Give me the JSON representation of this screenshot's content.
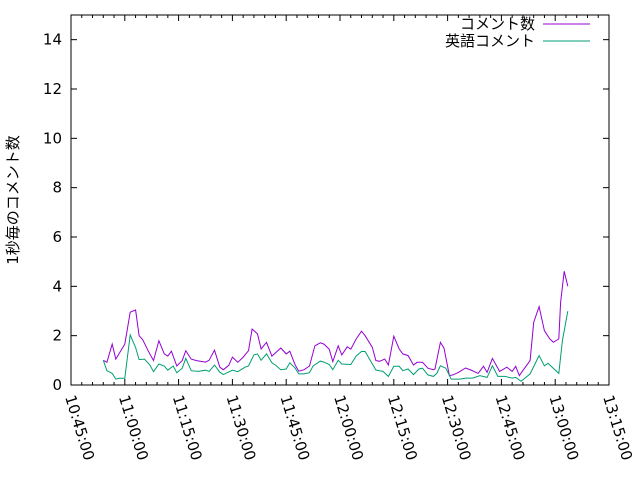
{
  "chart_data": {
    "type": "line",
    "title": "",
    "xlabel": "",
    "ylabel": "1秒毎のコメント数",
    "xlim": [
      "10:45:00",
      "13:15:00"
    ],
    "ylim": [
      0,
      15
    ],
    "x_ticks": [
      "10:45:00",
      "11:00:00",
      "11:15:00",
      "11:30:00",
      "11:45:00",
      "12:00:00",
      "12:15:00",
      "12:30:00",
      "12:45:00",
      "13:00:00",
      "13:15:00"
    ],
    "y_ticks": [
      0,
      2,
      4,
      6,
      8,
      10,
      12,
      14
    ],
    "grid": false,
    "legend": "top-right",
    "series": [
      {
        "name": "コメント数",
        "color": "#9400d3",
        "points": [
          [
            "10:54:00",
            1.0
          ],
          [
            "10:55:00",
            0.92
          ],
          [
            "10:56:30",
            1.66
          ],
          [
            "10:57:30",
            1.05
          ],
          [
            "11:00:00",
            1.66
          ],
          [
            "11:01:30",
            2.95
          ],
          [
            "11:03:00",
            3.04
          ],
          [
            "11:04:00",
            2.0
          ],
          [
            "11:05:00",
            1.84
          ],
          [
            "11:06:30",
            1.39
          ],
          [
            "11:08:00",
            0.99
          ],
          [
            "11:09:30",
            1.79
          ],
          [
            "11:11:00",
            1.26
          ],
          [
            "11:12:00",
            1.17
          ],
          [
            "11:13:00",
            1.37
          ],
          [
            "11:14:30",
            0.77
          ],
          [
            "11:16:00",
            0.99
          ],
          [
            "11:17:00",
            1.39
          ],
          [
            "11:18:30",
            1.05
          ],
          [
            "11:20:00",
            0.99
          ],
          [
            "11:22:30",
            0.93
          ],
          [
            "11:23:30",
            1.0
          ],
          [
            "11:25:00",
            1.41
          ],
          [
            "11:26:30",
            0.72
          ],
          [
            "11:27:30",
            0.62
          ],
          [
            "11:29:00",
            0.8
          ],
          [
            "11:30:00",
            1.13
          ],
          [
            "11:31:30",
            0.92
          ],
          [
            "11:33:00",
            1.13
          ],
          [
            "11:34:30",
            1.39
          ],
          [
            "11:35:30",
            2.27
          ],
          [
            "11:37:00",
            2.07
          ],
          [
            "11:38:00",
            1.46
          ],
          [
            "11:39:30",
            1.73
          ],
          [
            "11:41:00",
            1.17
          ],
          [
            "11:43:30",
            1.5
          ],
          [
            "11:45:00",
            1.26
          ],
          [
            "11:46:00",
            1.37
          ],
          [
            "11:47:30",
            0.81
          ],
          [
            "11:48:30",
            0.56
          ],
          [
            "11:50:00",
            0.62
          ],
          [
            "11:51:30",
            0.77
          ],
          [
            "11:53:00",
            1.59
          ],
          [
            "11:54:30",
            1.71
          ],
          [
            "11:55:30",
            1.66
          ],
          [
            "11:57:00",
            1.45
          ],
          [
            "11:58:00",
            0.95
          ],
          [
            "11:59:30",
            1.59
          ],
          [
            "12:00:30",
            1.22
          ],
          [
            "12:02:00",
            1.55
          ],
          [
            "12:03:00",
            1.45
          ],
          [
            "12:04:30",
            1.86
          ],
          [
            "12:06:00",
            2.18
          ],
          [
            "12:07:00",
            2.0
          ],
          [
            "12:09:00",
            1.53
          ],
          [
            "12:10:00",
            0.99
          ],
          [
            "12:11:00",
            0.96
          ],
          [
            "12:12:30",
            1.05
          ],
          [
            "12:13:30",
            0.81
          ],
          [
            "12:15:00",
            1.98
          ],
          [
            "12:16:30",
            1.46
          ],
          [
            "12:17:30",
            1.26
          ],
          [
            "12:19:00",
            1.19
          ],
          [
            "12:20:30",
            0.81
          ],
          [
            "12:21:30",
            0.92
          ],
          [
            "12:23:00",
            0.92
          ],
          [
            "12:24:30",
            0.68
          ],
          [
            "12:26:00",
            0.62
          ],
          [
            "12:26:30",
            0.65
          ],
          [
            "12:28:00",
            1.73
          ],
          [
            "12:29:00",
            1.49
          ],
          [
            "12:30:30",
            0.38
          ],
          [
            "12:31:30",
            0.41
          ],
          [
            "12:33:00",
            0.51
          ],
          [
            "12:35:00",
            0.69
          ],
          [
            "12:36:30",
            0.61
          ],
          [
            "12:38:30",
            0.47
          ],
          [
            "12:40:00",
            0.76
          ],
          [
            "12:41:00",
            0.51
          ],
          [
            "12:42:30",
            1.08
          ],
          [
            "12:44:30",
            0.55
          ],
          [
            "12:46:30",
            0.72
          ],
          [
            "12:48:00",
            0.55
          ],
          [
            "12:49:00",
            0.76
          ],
          [
            "12:50:00",
            0.38
          ],
          [
            "12:53:00",
            0.99
          ],
          [
            "12:54:00",
            2.54
          ],
          [
            "12:55:30",
            3.18
          ],
          [
            "12:57:00",
            2.2
          ],
          [
            "12:58:30",
            1.87
          ],
          [
            "12:59:30",
            1.73
          ],
          [
            "13:01:00",
            1.87
          ],
          [
            "13:01:30",
            3.35
          ],
          [
            "13:02:30",
            4.61
          ],
          [
            "13:03:30",
            4.0
          ]
        ]
      },
      {
        "name": "英語コメント",
        "color": "#009e73",
        "points": [
          [
            "10:54:00",
            1.0
          ],
          [
            "10:55:00",
            0.58
          ],
          [
            "10:56:30",
            0.47
          ],
          [
            "10:57:30",
            0.24
          ],
          [
            "10:58:30",
            0.27
          ],
          [
            "11:00:00",
            0.27
          ],
          [
            "11:01:30",
            2.03
          ],
          [
            "11:03:00",
            1.52
          ],
          [
            "11:04:00",
            1.03
          ],
          [
            "11:05:30",
            1.05
          ],
          [
            "11:07:00",
            0.81
          ],
          [
            "11:08:00",
            0.54
          ],
          [
            "11:09:30",
            0.85
          ],
          [
            "11:11:00",
            0.77
          ],
          [
            "11:12:00",
            0.6
          ],
          [
            "11:13:30",
            0.77
          ],
          [
            "11:14:30",
            0.5
          ],
          [
            "11:16:00",
            0.68
          ],
          [
            "11:17:00",
            1.08
          ],
          [
            "11:18:30",
            0.58
          ],
          [
            "11:20:30",
            0.55
          ],
          [
            "11:22:30",
            0.6
          ],
          [
            "11:23:30",
            0.55
          ],
          [
            "11:25:00",
            0.81
          ],
          [
            "11:26:30",
            0.52
          ],
          [
            "11:27:30",
            0.42
          ],
          [
            "11:30:00",
            0.6
          ],
          [
            "11:31:30",
            0.54
          ],
          [
            "11:33:30",
            0.72
          ],
          [
            "11:34:30",
            0.77
          ],
          [
            "11:36:00",
            1.22
          ],
          [
            "11:37:00",
            1.26
          ],
          [
            "11:38:00",
            1.0
          ],
          [
            "11:39:30",
            1.26
          ],
          [
            "11:41:00",
            0.9
          ],
          [
            "11:42:00",
            0.81
          ],
          [
            "11:43:30",
            0.62
          ],
          [
            "11:45:00",
            0.65
          ],
          [
            "11:46:00",
            0.9
          ],
          [
            "11:47:30",
            0.68
          ],
          [
            "11:48:30",
            0.45
          ],
          [
            "11:50:00",
            0.45
          ],
          [
            "11:51:30",
            0.5
          ],
          [
            "11:52:30",
            0.77
          ],
          [
            "11:54:30",
            0.97
          ],
          [
            "11:55:30",
            0.93
          ],
          [
            "11:57:00",
            0.83
          ],
          [
            "11:58:00",
            0.62
          ],
          [
            "11:59:30",
            1.0
          ],
          [
            "12:00:30",
            0.85
          ],
          [
            "12:03:00",
            0.83
          ],
          [
            "12:04:30",
            1.17
          ],
          [
            "12:06:00",
            1.36
          ],
          [
            "12:07:00",
            1.36
          ],
          [
            "12:10:00",
            0.61
          ],
          [
            "12:12:00",
            0.55
          ],
          [
            "12:13:30",
            0.35
          ],
          [
            "12:15:00",
            0.76
          ],
          [
            "12:16:30",
            0.76
          ],
          [
            "12:17:30",
            0.58
          ],
          [
            "12:19:00",
            0.65
          ],
          [
            "12:20:30",
            0.42
          ],
          [
            "12:22:00",
            0.65
          ],
          [
            "12:23:00",
            0.68
          ],
          [
            "12:24:30",
            0.41
          ],
          [
            "12:26:00",
            0.35
          ],
          [
            "12:27:00",
            0.47
          ],
          [
            "12:28:00",
            0.78
          ],
          [
            "12:29:30",
            0.68
          ],
          [
            "12:31:00",
            0.24
          ],
          [
            "12:33:30",
            0.24
          ],
          [
            "12:35:00",
            0.28
          ],
          [
            "12:37:00",
            0.28
          ],
          [
            "12:39:00",
            0.38
          ],
          [
            "12:41:00",
            0.31
          ],
          [
            "12:42:30",
            0.78
          ],
          [
            "12:44:00",
            0.35
          ],
          [
            "12:46:00",
            0.35
          ],
          [
            "12:48:00",
            0.28
          ],
          [
            "12:49:00",
            0.31
          ],
          [
            "12:50:30",
            0.15
          ],
          [
            "12:53:00",
            0.45
          ],
          [
            "12:55:30",
            1.19
          ],
          [
            "12:57:00",
            0.78
          ],
          [
            "12:58:00",
            0.88
          ],
          [
            "13:01:00",
            0.47
          ],
          [
            "13:02:00",
            1.8
          ],
          [
            "13:03:30",
            2.99
          ]
        ]
      }
    ]
  }
}
